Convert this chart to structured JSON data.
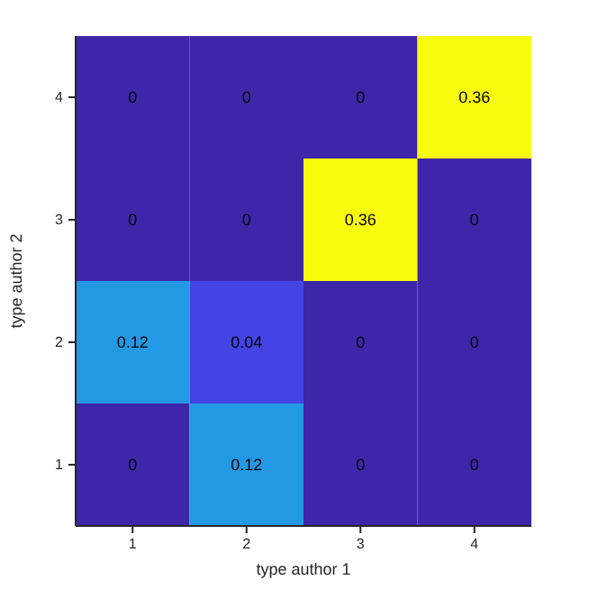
{
  "chart_data": {
    "type": "heatmap",
    "xlabel": "type author 1",
    "ylabel": "type author 2",
    "categories": [
      "1",
      "2",
      "3",
      "4"
    ],
    "y_categories": [
      "4",
      "3",
      "2",
      "1"
    ],
    "cells": [
      [
        0,
        0,
        0,
        0.36
      ],
      [
        0,
        0,
        0.36,
        0
      ],
      [
        0.12,
        0.04,
        0,
        0
      ],
      [
        0,
        0.12,
        0,
        0
      ]
    ],
    "data_labels": true
  }
}
